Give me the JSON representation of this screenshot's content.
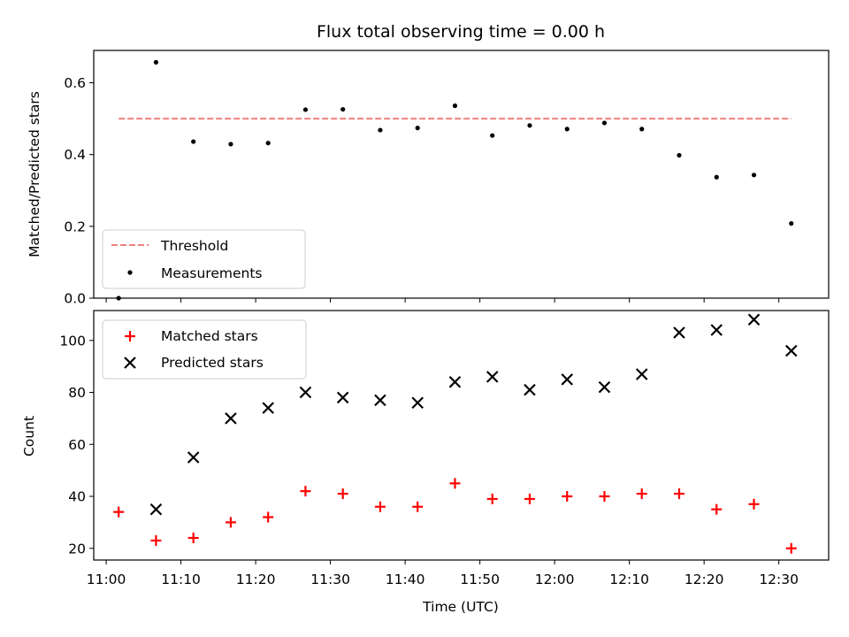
{
  "chart_data": [
    {
      "type": "scatter",
      "title": "Flux total observing time = 0.00 h",
      "xlabel": "",
      "ylabel": "Matched/Predicted stars",
      "ylim": [
        0,
        0.69
      ],
      "yticks": [
        "0.0",
        "0.2",
        "0.4",
        "0.6"
      ],
      "xlim": [
        "10:58:20",
        "12:36:40"
      ],
      "grid": false,
      "legend": "lower-left",
      "x": [
        "11:01:40",
        "11:06:40",
        "11:11:40",
        "11:16:40",
        "11:21:40",
        "11:26:40",
        "11:31:40",
        "11:36:40",
        "11:41:40",
        "11:46:40",
        "11:51:40",
        "11:56:40",
        "12:01:40",
        "12:06:40",
        "12:11:40",
        "12:16:40",
        "12:21:40",
        "12:26:40",
        "12:31:40"
      ],
      "series": [
        {
          "name": "Threshold",
          "kind": "dashed-line",
          "color": "#f08080",
          "x": [
            "11:01:40",
            "12:31:40"
          ],
          "values": [
            0.5,
            0.5
          ]
        },
        {
          "name": "Measurements",
          "kind": "dot",
          "color": "#000000",
          "values": [
            0.0,
            0.657,
            0.436,
            0.429,
            0.432,
            0.525,
            0.526,
            0.468,
            0.474,
            0.536,
            0.453,
            0.481,
            0.471,
            0.488,
            0.471,
            0.398,
            0.337,
            0.343,
            0.208
          ]
        }
      ]
    },
    {
      "type": "scatter",
      "title": "",
      "xlabel": "Time (UTC)",
      "ylabel": "Count",
      "ylim": [
        15.5,
        111.5
      ],
      "yticks": [
        "20",
        "40",
        "60",
        "80",
        "100"
      ],
      "xticks": [
        "11:00",
        "11:10",
        "11:20",
        "11:30",
        "11:40",
        "11:50",
        "12:00",
        "12:10",
        "12:20",
        "12:30"
      ],
      "xlim": [
        "10:58:20",
        "12:36:40"
      ],
      "grid": false,
      "legend": "upper-left",
      "x": [
        "11:01:40",
        "11:06:40",
        "11:11:40",
        "11:16:40",
        "11:21:40",
        "11:26:40",
        "11:31:40",
        "11:36:40",
        "11:41:40",
        "11:46:40",
        "11:51:40",
        "11:56:40",
        "12:01:40",
        "12:06:40",
        "12:11:40",
        "12:16:40",
        "12:21:40",
        "12:26:40",
        "12:31:40"
      ],
      "series": [
        {
          "name": "Matched stars",
          "kind": "plus",
          "color": "#ff0000",
          "values": [
            34,
            23,
            24,
            30,
            32,
            42,
            41,
            36,
            36,
            45,
            39,
            39,
            40,
            40,
            41,
            41,
            35,
            37,
            20
          ]
        },
        {
          "name": "Predicted stars",
          "kind": "cross",
          "color": "#000000",
          "values": [
            null,
            35,
            55,
            70,
            74,
            80,
            78,
            77,
            76,
            84,
            86,
            81,
            85,
            82,
            87,
            103,
            104,
            108,
            96
          ]
        }
      ]
    }
  ]
}
